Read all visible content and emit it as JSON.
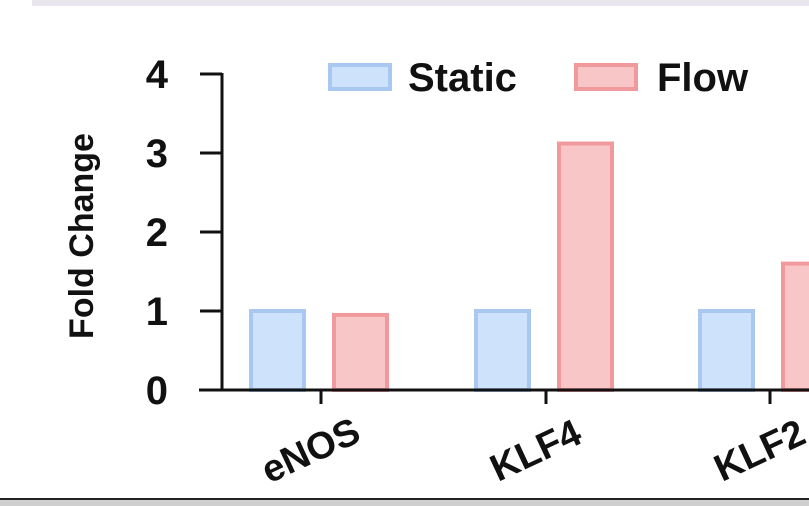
{
  "chart_data": {
    "type": "bar",
    "categories": [
      "eNOS",
      "KLF4",
      "KLF2"
    ],
    "series": [
      {
        "name": "Static",
        "values": [
          1.0,
          1.0,
          1.0
        ],
        "fill": "#cfe2fb",
        "stroke": "#a8c8f2"
      },
      {
        "name": "Flow",
        "values": [
          0.95,
          3.12,
          1.6
        ],
        "fill": "#f9c6c8",
        "stroke": "#f09a9e"
      }
    ],
    "ylabel": "Fold Change",
    "ylim": [
      0,
      4
    ],
    "yticks": [
      "0",
      "1",
      "2",
      "3",
      "4"
    ],
    "legend_position": "top"
  }
}
